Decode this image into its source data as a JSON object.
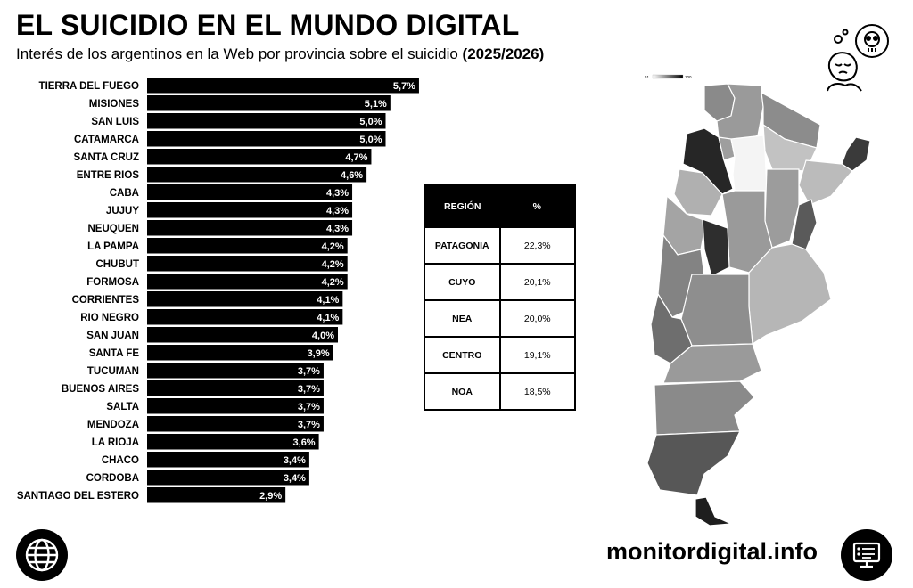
{
  "header": {
    "title": "EL SUICIDIO EN EL MUNDO DIGITAL",
    "subtitle": "Interés de los argentinos en la Web por provincia sobre el suicidio",
    "period": "(2025/2026)"
  },
  "chart_data": {
    "type": "bar",
    "orientation": "horizontal",
    "categories": [
      "TIERRA DEL FUEGO",
      "MISIONES",
      "SAN LUIS",
      "CATAMARCA",
      "SANTA CRUZ",
      "ENTRE RIOS",
      "CABA",
      "JUJUY",
      "NEUQUEN",
      "LA PAMPA",
      "CHUBUT",
      "FORMOSA",
      "CORRIENTES",
      "RIO NEGRO",
      "SAN JUAN",
      "SANTA FE",
      "TUCUMAN",
      "BUENOS AIRES",
      "SALTA",
      "MENDOZA",
      "LA RIOJA",
      "CHACO",
      "CORDOBA",
      "SANTIAGO DEL ESTERO"
    ],
    "values": [
      5.7,
      5.1,
      5.0,
      5.0,
      4.7,
      4.6,
      4.3,
      4.3,
      4.3,
      4.2,
      4.2,
      4.2,
      4.1,
      4.1,
      4.0,
      3.9,
      3.7,
      3.7,
      3.7,
      3.7,
      3.6,
      3.4,
      3.4,
      2.9
    ],
    "value_labels": [
      "5,7%",
      "5,1%",
      "5,0%",
      "5,0%",
      "4,7%",
      "4,6%",
      "4,3%",
      "4,3%",
      "4,3%",
      "4,2%",
      "4,2%",
      "4,2%",
      "4,1%",
      "4,1%",
      "4,0%",
      "3,9%",
      "3,7%",
      "3,7%",
      "3,7%",
      "3,7%",
      "3,6%",
      "3,4%",
      "3,4%",
      "2,9%"
    ],
    "bar_color": "#000000",
    "grid": false
  },
  "region_table": {
    "headers": [
      "REGIÓN",
      "%"
    ],
    "rows": [
      {
        "region": "PATAGONIA",
        "pct": "22,3%"
      },
      {
        "region": "CUYO",
        "pct": "20,1%"
      },
      {
        "region": "NEA",
        "pct": "20,0%"
      },
      {
        "region": "CENTRO",
        "pct": "19,1%"
      },
      {
        "region": "NOA",
        "pct": "18,5%"
      }
    ]
  },
  "map": {
    "legend_min": "51",
    "legend_max": "100",
    "style": "grayscale choropleth of Argentina provinces"
  },
  "footer": {
    "brand": "monitordigital.info",
    "left_icon": "globe-icon",
    "right_icon": "monitor-icon"
  },
  "decor": {
    "top_icon": "worried-person-skull-icon"
  }
}
